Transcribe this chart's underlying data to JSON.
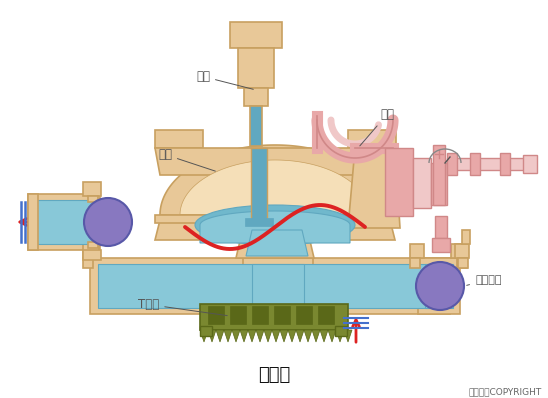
{
  "bg_color": "#ffffff",
  "tan_color": "#C8A060",
  "tan_fill": "#E8C898",
  "tan_inner": "#F5DFB8",
  "blue_fill": "#88C8D8",
  "blue_dark": "#60A8C0",
  "blue_mid": "#70B8CC",
  "pink_fill": "#E8A8A8",
  "pink_light": "#F0C8C8",
  "pink_dark": "#D08888",
  "purple_fill": "#8878C0",
  "olive_fill": "#7A8830",
  "olive_dark": "#5A6818",
  "red_color": "#DD2222",
  "blue_line": "#4470CC",
  "label_color": "#555555",
  "title": "隔膜泵",
  "copyright": "东方仿真COPYRIGHT",
  "labels": {
    "qi_gang": "气缸",
    "beng_ti": "泵体",
    "ge_mo": "隔膜",
    "dan_xiang": "单向球阀",
    "t_guan": "T型管"
  },
  "figsize": [
    5.48,
    3.98
  ],
  "dpi": 100
}
